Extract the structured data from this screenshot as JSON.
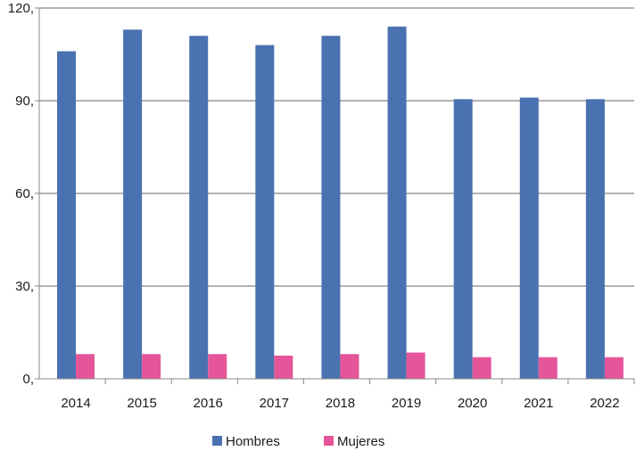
{
  "chart_data": {
    "type": "bar",
    "categories": [
      "2014",
      "2015",
      "2016",
      "2017",
      "2018",
      "2019",
      "2020",
      "2021",
      "2022"
    ],
    "series": [
      {
        "name": "Hombres",
        "color": "#4a72b0",
        "values": [
          106,
          113,
          111,
          108,
          111,
          114,
          90.5,
          91,
          90.5
        ]
      },
      {
        "name": "Mujeres",
        "color": "#e5559a",
        "values": [
          8,
          8,
          8,
          7.5,
          8,
          8.5,
          7,
          7,
          7
        ]
      }
    ],
    "title": "",
    "xlabel": "",
    "ylabel": "",
    "ylim": [
      0,
      120
    ],
    "yticks": [
      0,
      30,
      60,
      90,
      120
    ],
    "ytick_labels": [
      "0,",
      "30,",
      "60,",
      "90,",
      "120,"
    ],
    "grid": true,
    "legend_position": "bottom-center"
  }
}
